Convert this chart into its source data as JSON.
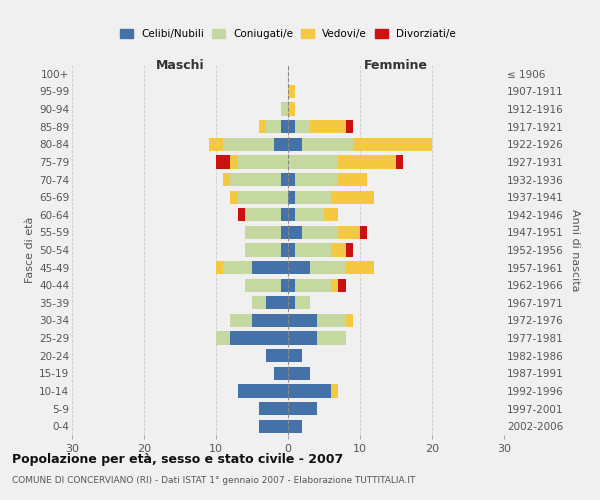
{
  "age_groups": [
    "100+",
    "95-99",
    "90-94",
    "85-89",
    "80-84",
    "75-79",
    "70-74",
    "65-69",
    "60-64",
    "55-59",
    "50-54",
    "45-49",
    "40-44",
    "35-39",
    "30-34",
    "25-29",
    "20-24",
    "15-19",
    "10-14",
    "5-9",
    "0-4"
  ],
  "birth_years": [
    "≤ 1906",
    "1907-1911",
    "1912-1916",
    "1917-1921",
    "1922-1926",
    "1927-1931",
    "1932-1936",
    "1937-1941",
    "1942-1946",
    "1947-1951",
    "1952-1956",
    "1957-1961",
    "1962-1966",
    "1967-1971",
    "1972-1976",
    "1977-1981",
    "1982-1986",
    "1987-1991",
    "1992-1996",
    "1997-2001",
    "2002-2006"
  ],
  "maschi": {
    "celibi": [
      0,
      0,
      0,
      1,
      2,
      0,
      1,
      0,
      1,
      1,
      1,
      5,
      1,
      3,
      5,
      8,
      3,
      2,
      7,
      4,
      4
    ],
    "coniugati": [
      0,
      0,
      1,
      2,
      7,
      7,
      7,
      7,
      5,
      5,
      5,
      4,
      5,
      2,
      3,
      2,
      0,
      0,
      0,
      0,
      0
    ],
    "vedovi": [
      0,
      0,
      0,
      1,
      2,
      1,
      1,
      1,
      0,
      0,
      0,
      1,
      0,
      0,
      0,
      0,
      0,
      0,
      0,
      0,
      0
    ],
    "divorziati": [
      0,
      0,
      0,
      0,
      0,
      2,
      0,
      0,
      1,
      0,
      0,
      0,
      0,
      0,
      0,
      0,
      0,
      0,
      0,
      0,
      0
    ]
  },
  "femmine": {
    "nubili": [
      0,
      0,
      0,
      1,
      2,
      0,
      1,
      1,
      1,
      2,
      1,
      3,
      1,
      1,
      4,
      4,
      2,
      3,
      6,
      4,
      2
    ],
    "coniugate": [
      0,
      0,
      0,
      2,
      7,
      7,
      6,
      5,
      4,
      5,
      5,
      5,
      5,
      2,
      4,
      4,
      0,
      0,
      0,
      0,
      0
    ],
    "vedove": [
      0,
      1,
      1,
      5,
      11,
      8,
      4,
      6,
      2,
      3,
      2,
      4,
      1,
      0,
      1,
      0,
      0,
      0,
      1,
      0,
      0
    ],
    "divorziate": [
      0,
      0,
      0,
      1,
      0,
      1,
      0,
      0,
      0,
      1,
      1,
      0,
      1,
      0,
      0,
      0,
      0,
      0,
      0,
      0,
      0
    ]
  },
  "colors": {
    "celibi": "#4472a8",
    "coniugati": "#c5d8a0",
    "vedovi": "#f5c842",
    "divorziati": "#cc1111"
  },
  "xlim": 30,
  "title": "Popolazione per età, sesso e stato civile - 2007",
  "subtitle": "COMUNE DI CONCERVIANO (RI) - Dati ISTAT 1° gennaio 2007 - Elaborazione TUTTITALIA.IT",
  "ylabel_left": "Fasce di età",
  "ylabel_right": "Anni di nascita",
  "xlabel_maschi": "Maschi",
  "xlabel_femmine": "Femmine",
  "legend_labels": [
    "Celibi/Nubili",
    "Coniugati/e",
    "Vedovi/e",
    "Divorziati/e"
  ],
  "bg_color": "#f0f0f0",
  "grid_color": "#cccccc"
}
